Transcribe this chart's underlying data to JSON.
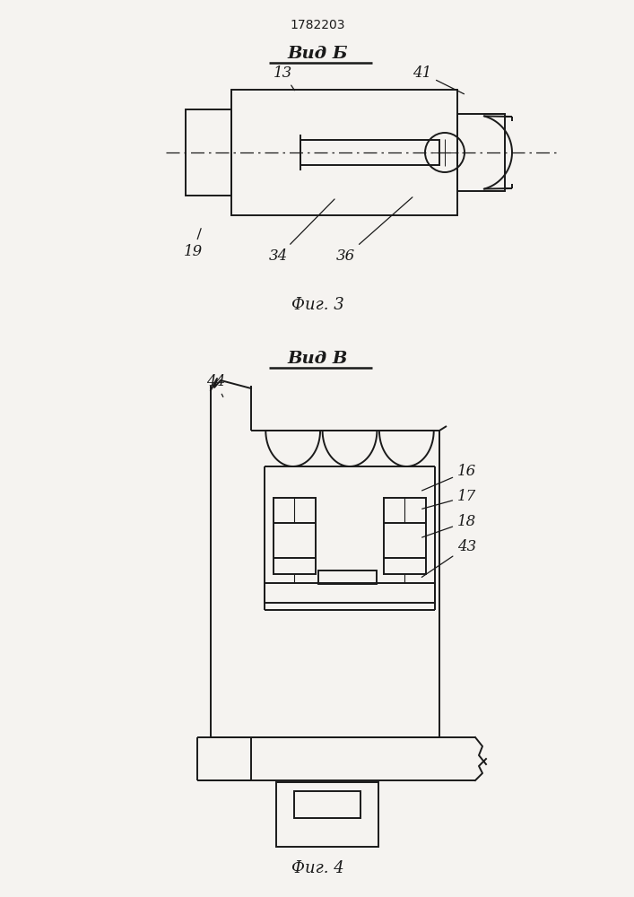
{
  "title": "1782203",
  "bg_color": "#f5f3f0",
  "line_color": "#1a1a1a",
  "fig3_label": "Вид Б",
  "fig3_caption": "Фиг. 3",
  "fig4_label": "Вид В",
  "fig4_caption": "Фиг. 4"
}
